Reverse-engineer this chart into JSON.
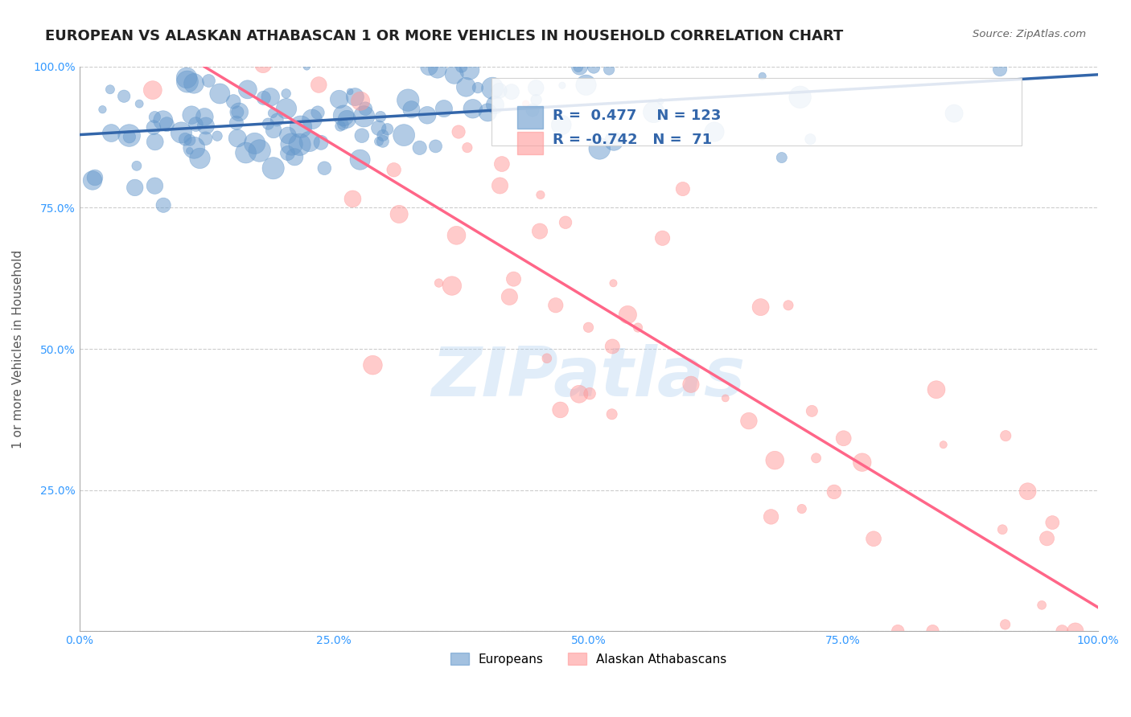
{
  "title": "EUROPEAN VS ALASKAN ATHABASCAN 1 OR MORE VEHICLES IN HOUSEHOLD CORRELATION CHART",
  "source": "Source: ZipAtlas.com",
  "xlabel": "",
  "ylabel": "1 or more Vehicles in Household",
  "xlim": [
    0,
    1
  ],
  "ylim": [
    0,
    1
  ],
  "xticks": [
    0.0,
    0.25,
    0.5,
    0.75,
    1.0
  ],
  "yticks": [
    0.0,
    0.25,
    0.5,
    0.75,
    1.0
  ],
  "xtick_labels": [
    "0.0%",
    "25.0%",
    "50.0%",
    "75.0%",
    "100.0%"
  ],
  "ytick_labels": [
    "",
    "25.0%",
    "50.0%",
    "75.0%",
    "100.0%"
  ],
  "blue_R": 0.477,
  "blue_N": 123,
  "pink_R": -0.742,
  "pink_N": 71,
  "blue_color": "#6699CC",
  "pink_color": "#FF9999",
  "blue_line_color": "#3366AA",
  "pink_line_color": "#FF6688",
  "watermark": "ZIPatlas",
  "legend_europeans": "Europeans",
  "legend_athabascans": "Alaskan Athabascans",
  "background_color": "#ffffff",
  "grid_color": "#CCCCCC",
  "title_fontsize": 13,
  "axis_label_fontsize": 11,
  "tick_fontsize": 10,
  "blue_seed": 42,
  "pink_seed": 7
}
